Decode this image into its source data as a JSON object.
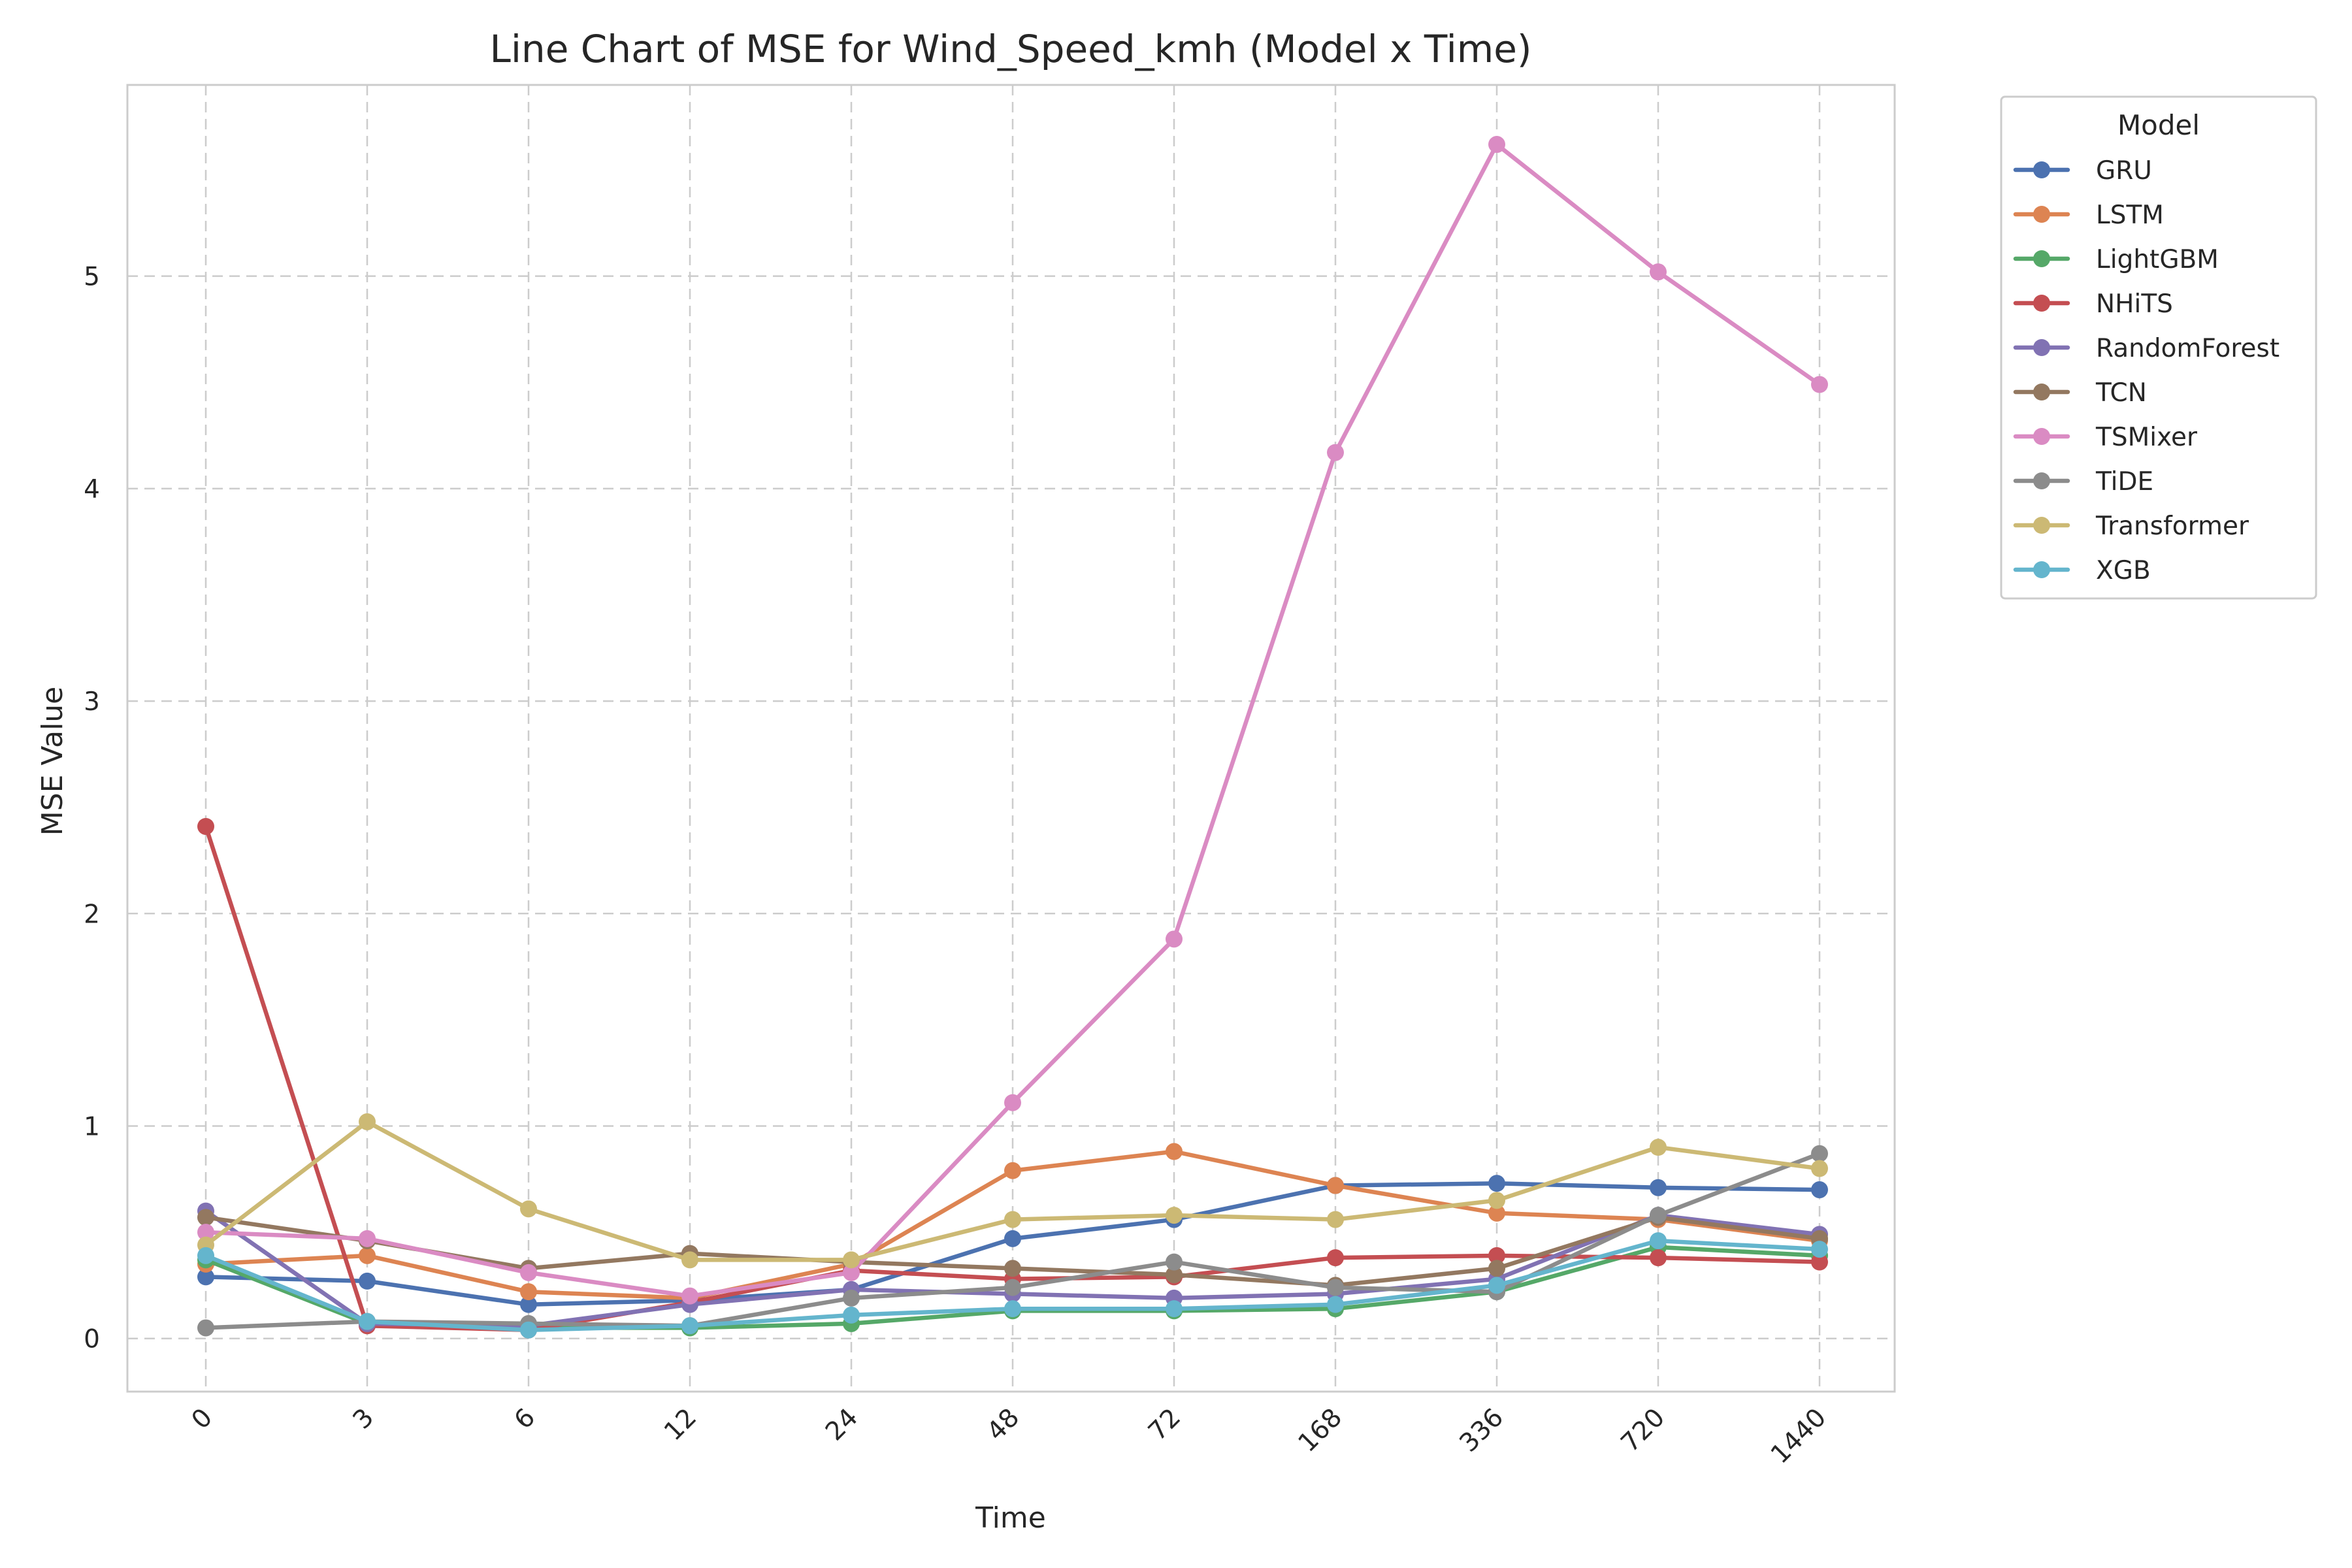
{
  "chart_data": {
    "type": "line",
    "title": "Line Chart of MSE for Wind_Speed_kmh (Model x Time)",
    "xlabel": "Time",
    "ylabel": "MSE Value",
    "x": [
      "0",
      "3",
      "6",
      "12",
      "24",
      "48",
      "72",
      "168",
      "336",
      "720",
      "1440"
    ],
    "ylim": [
      -0.25,
      5.9
    ],
    "yticks": [
      0,
      1,
      2,
      3,
      4,
      5
    ],
    "grid": true,
    "legend": {
      "title": "Model",
      "placement": "outside-top-right"
    },
    "series": [
      {
        "name": "GRU",
        "color": "#4c72b0",
        "values": [
          0.29,
          0.27,
          0.16,
          0.18,
          0.23,
          0.47,
          0.56,
          0.72,
          0.73,
          0.71,
          0.7
        ]
      },
      {
        "name": "LSTM",
        "color": "#dd8452",
        "values": [
          0.35,
          0.39,
          0.22,
          0.19,
          0.35,
          0.79,
          0.88,
          0.72,
          0.59,
          0.56,
          0.46
        ]
      },
      {
        "name": "LightGBM",
        "color": "#55a868",
        "values": [
          0.37,
          0.07,
          0.05,
          0.05,
          0.07,
          0.13,
          0.13,
          0.14,
          0.22,
          0.43,
          0.39
        ]
      },
      {
        "name": "NHiTS",
        "color": "#c44e52",
        "values": [
          2.41,
          0.06,
          0.04,
          0.17,
          0.32,
          0.28,
          0.29,
          0.38,
          0.39,
          0.38,
          0.36
        ]
      },
      {
        "name": "RandomForest",
        "color": "#8172b3",
        "values": [
          0.6,
          0.07,
          0.06,
          0.16,
          0.23,
          0.21,
          0.19,
          0.21,
          0.28,
          0.58,
          0.49
        ]
      },
      {
        "name": "TCN",
        "color": "#937860",
        "values": [
          0.57,
          0.46,
          0.33,
          0.4,
          0.36,
          0.33,
          0.3,
          0.25,
          0.33,
          0.57,
          0.47
        ]
      },
      {
        "name": "TSMixer",
        "color": "#da8bc3",
        "values": [
          0.5,
          0.47,
          0.31,
          0.2,
          0.31,
          1.11,
          1.88,
          4.17,
          5.62,
          5.02,
          4.49
        ]
      },
      {
        "name": "TiDE",
        "color": "#8c8c8c",
        "values": [
          0.05,
          0.08,
          0.07,
          0.06,
          0.19,
          0.24,
          0.36,
          0.24,
          0.22,
          0.58,
          0.87
        ]
      },
      {
        "name": "Transformer",
        "color": "#ccb974",
        "values": [
          0.44,
          1.02,
          0.61,
          0.37,
          0.37,
          0.56,
          0.58,
          0.56,
          0.65,
          0.9,
          0.8
        ]
      },
      {
        "name": "XGB",
        "color": "#64b5cd",
        "values": [
          0.39,
          0.08,
          0.04,
          0.06,
          0.11,
          0.14,
          0.14,
          0.16,
          0.25,
          0.46,
          0.42
        ]
      }
    ]
  }
}
